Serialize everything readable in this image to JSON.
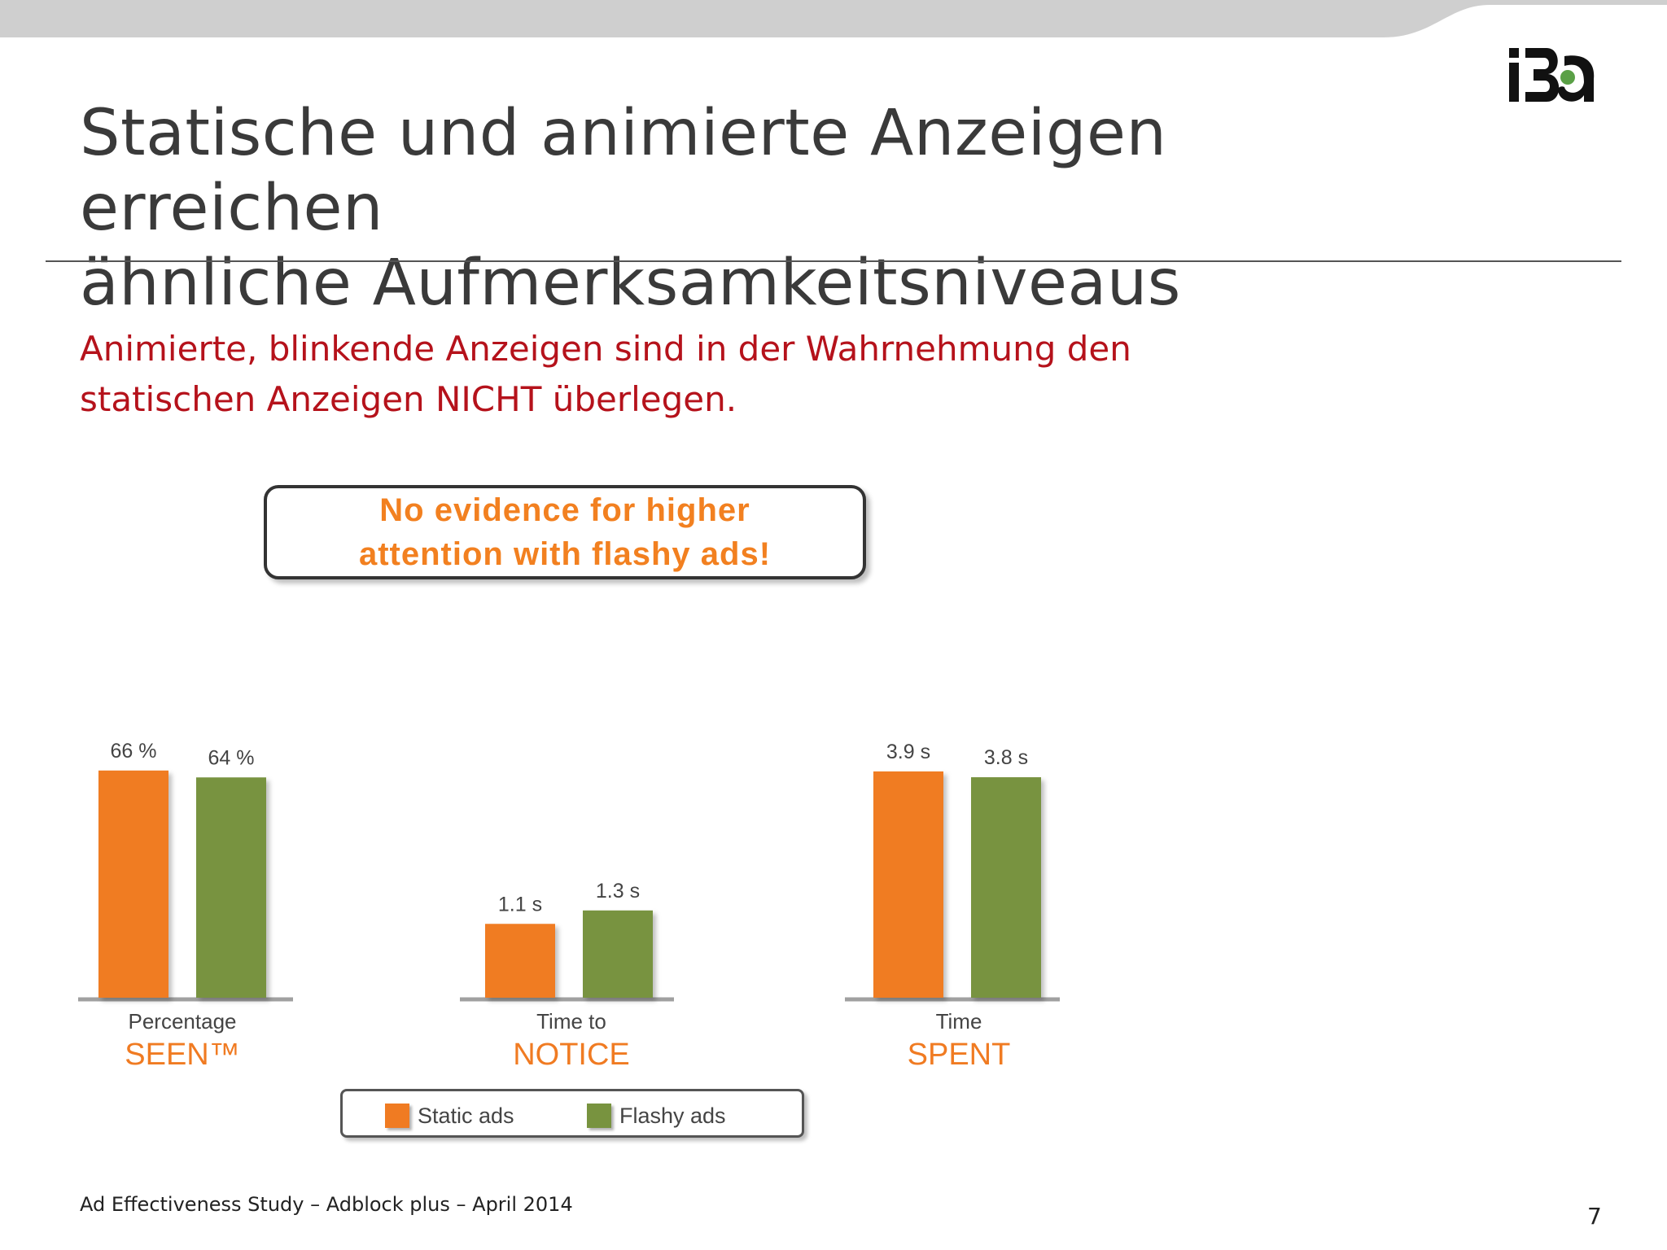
{
  "slide": {
    "title_line1": "Statische und animierte Anzeigen erreichen",
    "title_line2": "ähnliche Aufmerksamkeitsniveaus",
    "subtitle_line1": "Animierte, blinkende Anzeigen sind in der Wahrnehmung den",
    "subtitle_line2": "statischen Anzeigen NICHT überlegen.",
    "callout_line1": "No evidence for higher",
    "callout_line2": "attention with flashy ads!",
    "footer": "Ad Effectiveness Study – Adblock plus – April 2014",
    "page_number": "7",
    "logo_icon": "iba-logo-icon"
  },
  "colors": {
    "static": "#f07b22",
    "flashy": "#78933f",
    "title": "#3a3a3a",
    "subtitle": "#b5121b",
    "callout": "#f28020",
    "top_band": "#cfcfcf",
    "logo_accent": "#5aa046"
  },
  "chart_data": [
    {
      "type": "bar",
      "categories": [
        "Static ads",
        "Flashy ads"
      ],
      "values": [
        66,
        64
      ],
      "value_labels": [
        "66 %",
        "64 %"
      ],
      "xlabel_line1": "Percentage",
      "xlabel_line2": "SEEN™"
    },
    {
      "type": "bar",
      "categories": [
        "Static ads",
        "Flashy ads"
      ],
      "values": [
        1.1,
        1.3
      ],
      "value_labels": [
        "1.1 s",
        "1.3 s"
      ],
      "xlabel_line1": "Time to",
      "xlabel_line2": "NOTICE"
    },
    {
      "type": "bar",
      "categories": [
        "Static ads",
        "Flashy ads"
      ],
      "values": [
        3.9,
        3.8
      ],
      "value_labels": [
        "3.9 s",
        "3.8 s"
      ],
      "xlabel_line1": "Time",
      "xlabel_line2": "SPENT"
    }
  ],
  "legend": {
    "items": [
      {
        "label": "Static ads",
        "color": "#f07b22"
      },
      {
        "label": "Flashy ads",
        "color": "#78933f"
      }
    ],
    "placement": "bottom"
  }
}
